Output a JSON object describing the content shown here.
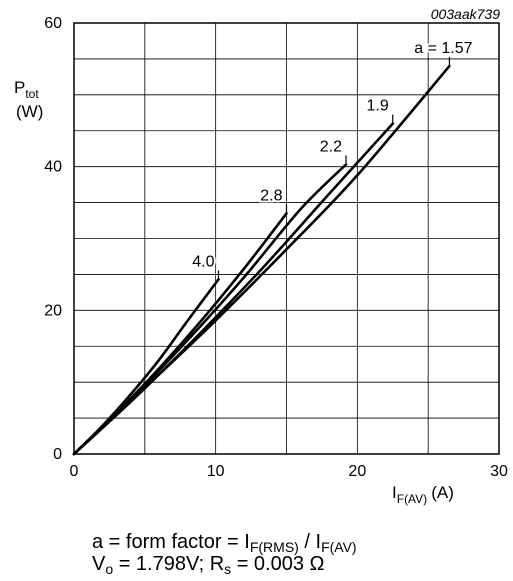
{
  "chart_data": {
    "type": "line",
    "figure_id": "003aak739",
    "y_axis_label": {
      "main": "P",
      "sub": "tot",
      "unit": "(W)"
    },
    "x_axis_label": {
      "main": "I",
      "sub": "F(AV)",
      "unit": "(A)"
    },
    "xlim": [
      0,
      30
    ],
    "ylim": [
      0,
      60
    ],
    "x_ticks": [
      0,
      10,
      20,
      30
    ],
    "y_ticks": [
      0,
      20,
      40,
      60
    ],
    "grid": true,
    "grid_x_step": 5,
    "grid_y_step": 5,
    "series": [
      {
        "name": "4.0",
        "label": "4.0",
        "color": "#000000",
        "x": [
          0,
          2,
          4,
          6,
          8,
          10.2
        ],
        "y": [
          0,
          3.9,
          8.3,
          13.1,
          18.5,
          24.3
        ]
      },
      {
        "name": "2.8",
        "label": "2.8",
        "color": "#000000",
        "x": [
          0,
          3,
          6,
          9,
          12,
          15
        ],
        "y": [
          0,
          5.7,
          11.9,
          18.6,
          25.8,
          33.5
        ]
      },
      {
        "name": "2.2",
        "label": "2.2",
        "color": "#000000",
        "x": [
          0,
          4,
          8,
          12,
          16,
          19.2
        ],
        "y": [
          0,
          7.6,
          15.8,
          24.6,
          34.1,
          40.3
        ]
      },
      {
        "name": "1.9",
        "label": "1.9",
        "color": "#000000",
        "x": [
          0,
          4.5,
          9,
          13.5,
          18,
          22.5
        ],
        "y": [
          0,
          8.2,
          17.0,
          26.3,
          36.2,
          46.0
        ]
      },
      {
        "name": "a = 1.57",
        "label": "a = 1.57",
        "color": "#000000",
        "x": [
          0,
          5,
          10,
          15,
          20,
          26.5
        ],
        "y": [
          0,
          9.2,
          18.6,
          28.5,
          38.8,
          54.0
        ]
      }
    ]
  },
  "caption": {
    "line1_prefix": "a = form factor = I",
    "line1_sub1": "F(RMS)",
    "line1_mid": " / I",
    "line1_sub2": "F(AV)",
    "line2_p1": "V",
    "line2_sub1": "o",
    "line2_p2": " = 1.798V; R",
    "line2_sub2": "s",
    "line2_p3": " = 0.003 Ω"
  }
}
